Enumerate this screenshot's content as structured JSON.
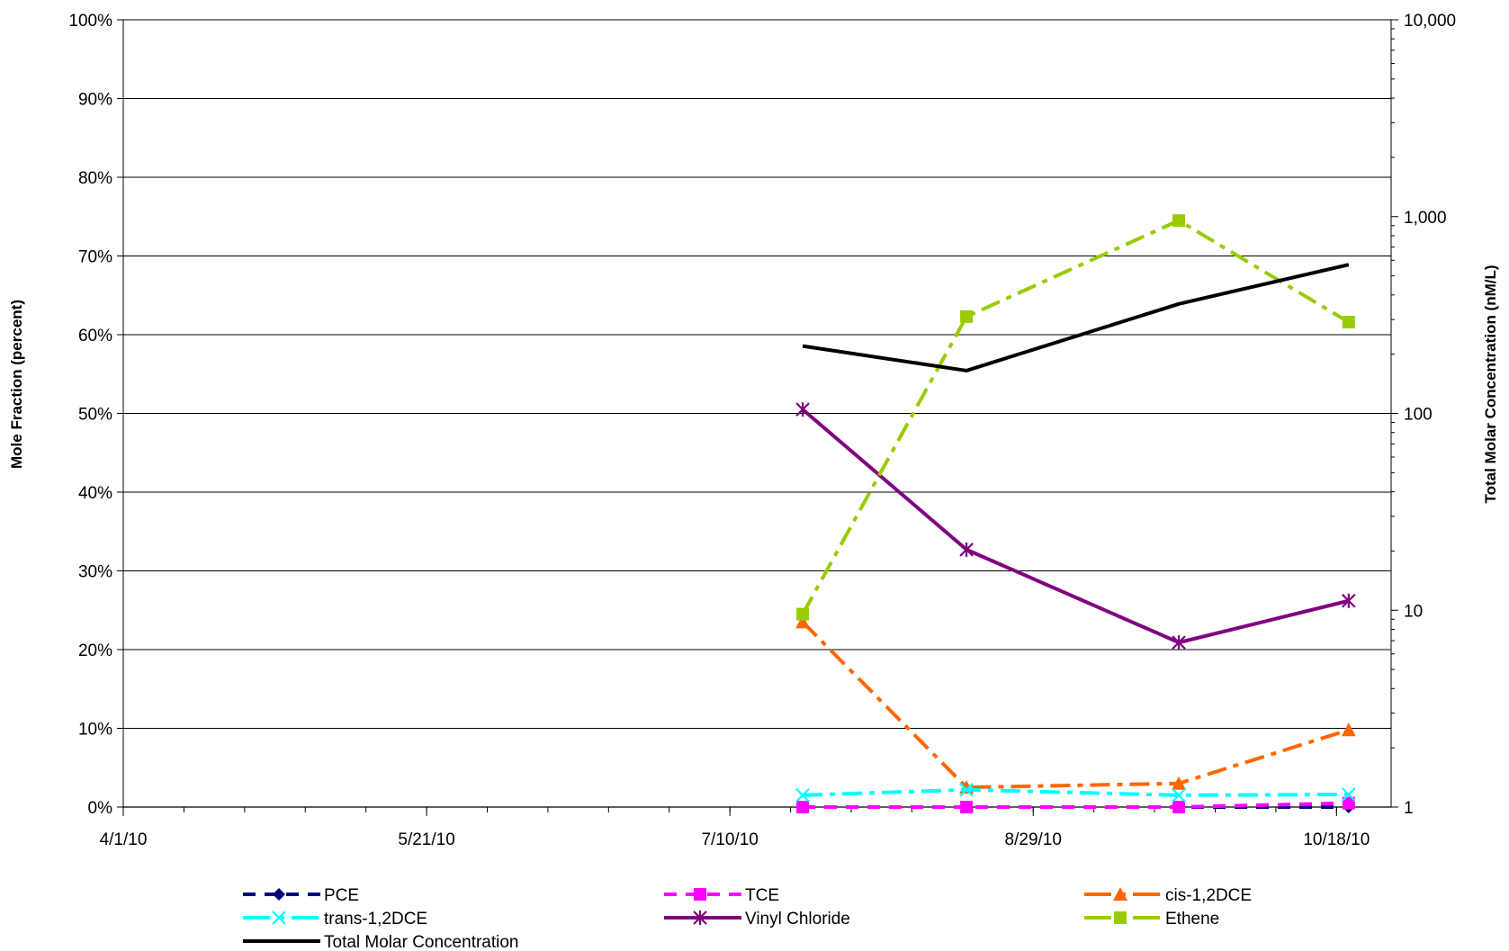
{
  "chart_data": {
    "type": "line",
    "title": "",
    "xlabel": "",
    "ylabel": "Mole Fraction (percent)",
    "y2label": "Total Molar Concentration (nM/L)",
    "x_range": [
      "2010-04-01",
      "2010-10-27"
    ],
    "x_ticks": [
      {
        "date": "2010-04-01",
        "label": "4/1/10"
      },
      {
        "date": "2010-05-21",
        "label": "5/21/10"
      },
      {
        "date": "2010-07-10",
        "label": "7/10/10"
      },
      {
        "date": "2010-08-29",
        "label": "8/29/10"
      },
      {
        "date": "2010-10-18",
        "label": "10/18/10"
      }
    ],
    "ylim": [
      0,
      100
    ],
    "y_ticks": [
      "0%",
      "10%",
      "20%",
      "30%",
      "40%",
      "50%",
      "60%",
      "70%",
      "80%",
      "90%",
      "100%"
    ],
    "y2_scale": "log",
    "y2lim": [
      1,
      10000
    ],
    "y2_ticks": [
      "1",
      "10",
      "100",
      "1,000",
      "10,000"
    ],
    "grid": "horizontal major lines",
    "legend_position": "bottom",
    "x": [
      "2010-07-22",
      "2010-08-18",
      "2010-09-22",
      "2010-10-20"
    ],
    "series": [
      {
        "name": "PCE",
        "axis": "left",
        "color": "#000080",
        "marker": "diamond",
        "dash": "dash",
        "values": [
          0,
          0,
          0,
          0
        ]
      },
      {
        "name": "TCE",
        "axis": "left",
        "color": "#FF00FF",
        "marker": "square",
        "dash": "dash",
        "values": [
          0,
          0,
          0,
          0.5
        ]
      },
      {
        "name": "cis-1,2DCE",
        "axis": "left",
        "color": "#FF6600",
        "marker": "triangle",
        "dash": "dashdot",
        "values": [
          23.5,
          2.5,
          3,
          9.8
        ]
      },
      {
        "name": "trans-1,2DCE",
        "axis": "left",
        "color": "#00FFFF",
        "marker": "x",
        "dash": "dashdot",
        "values": [
          1.5,
          2.2,
          1.5,
          1.6
        ]
      },
      {
        "name": "Vinyl Chloride",
        "axis": "left",
        "color": "#800080",
        "marker": "star",
        "dash": "solid",
        "values": [
          50.5,
          32.7,
          20.9,
          26.2
        ]
      },
      {
        "name": "Ethene",
        "axis": "left",
        "color": "#99CC00",
        "marker": "square",
        "dash": "dashdot",
        "values": [
          24.5,
          62.3,
          74.5,
          61.6
        ]
      },
      {
        "name": "Total Molar Concentration",
        "axis": "right",
        "color": "#000000",
        "marker": "none",
        "dash": "solid",
        "values": [
          220,
          165,
          360,
          570
        ]
      }
    ]
  }
}
